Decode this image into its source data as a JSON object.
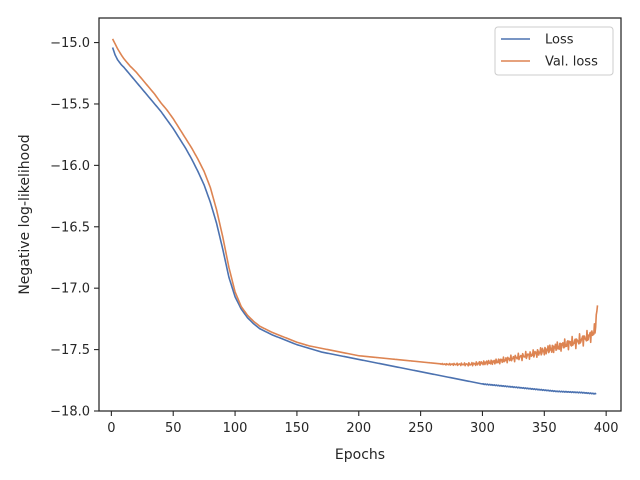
{
  "chart_data": {
    "type": "line",
    "title": "",
    "xlabel": "Epochs",
    "ylabel": "Negative log-likelihood",
    "xlim": [
      -10,
      412
    ],
    "ylim": [
      -18.0,
      -14.8
    ],
    "xticks": [
      0,
      50,
      100,
      150,
      200,
      250,
      300,
      350,
      400
    ],
    "yticks": [
      -15.0,
      -15.5,
      -16.0,
      -16.5,
      -17.0,
      -17.5,
      -18.0
    ],
    "xtick_labels": [
      "0",
      "50",
      "100",
      "150",
      "200",
      "250",
      "300",
      "350",
      "400"
    ],
    "ytick_labels": [
      "−15.0",
      "−15.5",
      "−16.0",
      "−16.5",
      "−17.0",
      "−17.5",
      "−18.0"
    ],
    "grid": false,
    "legend_position": "top-right",
    "series": [
      {
        "name": "Loss",
        "color": "#4c72b0",
        "x": [
          1,
          3,
          5,
          8,
          10,
          15,
          20,
          25,
          30,
          35,
          40,
          45,
          50,
          55,
          60,
          65,
          70,
          75,
          80,
          85,
          90,
          95,
          100,
          105,
          110,
          115,
          120,
          130,
          140,
          150,
          160,
          170,
          180,
          190,
          200,
          220,
          240,
          260,
          280,
          300,
          320,
          340,
          360,
          380,
          392
        ],
        "y": [
          -15.04,
          -15.1,
          -15.14,
          -15.18,
          -15.2,
          -15.26,
          -15.32,
          -15.38,
          -15.44,
          -15.5,
          -15.56,
          -15.63,
          -15.7,
          -15.78,
          -15.86,
          -15.95,
          -16.05,
          -16.16,
          -16.3,
          -16.47,
          -16.68,
          -16.91,
          -17.07,
          -17.17,
          -17.24,
          -17.29,
          -17.33,
          -17.38,
          -17.42,
          -17.46,
          -17.49,
          -17.52,
          -17.54,
          -17.56,
          -17.58,
          -17.62,
          -17.66,
          -17.7,
          -17.74,
          -17.78,
          -17.8,
          -17.82,
          -17.84,
          -17.85,
          -17.86
        ]
      },
      {
        "name": "Val. loss",
        "color": "#dd8452",
        "x": [
          1,
          3,
          5,
          8,
          10,
          15,
          20,
          25,
          30,
          35,
          40,
          45,
          50,
          55,
          60,
          65,
          70,
          75,
          80,
          85,
          90,
          95,
          100,
          105,
          110,
          115,
          120,
          130,
          140,
          150,
          160,
          170,
          180,
          190,
          200,
          220,
          240,
          260,
          270,
          280,
          290,
          300,
          310,
          320,
          330,
          340,
          350,
          360,
          370,
          375,
          380,
          385,
          388,
          391,
          393
        ],
        "y": [
          -14.97,
          -15.01,
          -15.05,
          -15.1,
          -15.13,
          -15.19,
          -15.24,
          -15.3,
          -15.36,
          -15.42,
          -15.49,
          -15.55,
          -15.62,
          -15.7,
          -15.78,
          -15.86,
          -15.95,
          -16.05,
          -16.18,
          -16.36,
          -16.58,
          -16.83,
          -17.03,
          -17.15,
          -17.22,
          -17.27,
          -17.31,
          -17.36,
          -17.4,
          -17.44,
          -17.47,
          -17.49,
          -17.51,
          -17.53,
          -17.55,
          -17.57,
          -17.59,
          -17.61,
          -17.62,
          -17.62,
          -17.62,
          -17.61,
          -17.6,
          -17.58,
          -17.56,
          -17.54,
          -17.51,
          -17.48,
          -17.45,
          -17.44,
          -17.42,
          -17.4,
          -17.38,
          -17.34,
          -17.14
        ]
      }
    ]
  }
}
